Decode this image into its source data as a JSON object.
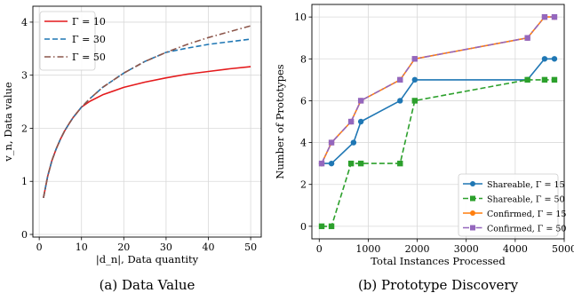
{
  "chart_data": [
    {
      "type": "line",
      "caption": "(a) Data Value",
      "xlabel": "|d_n|, Data quantity",
      "ylabel": "v_n, Data value",
      "xlim": [
        -1.5,
        52.5
      ],
      "ylim": [
        -0.05,
        4.3
      ],
      "xticks": [
        0,
        10,
        20,
        30,
        40,
        50
      ],
      "yticks": [
        0,
        1,
        2,
        3,
        4
      ],
      "grid": true,
      "legend_position": "top-left",
      "series": [
        {
          "name": "Γ = 10",
          "color": "#e41a1c",
          "dash": "solid",
          "x": [
            1,
            2,
            3,
            4,
            5,
            6,
            7,
            8,
            9,
            10,
            12,
            15,
            20,
            25,
            30,
            35,
            40,
            45,
            50
          ],
          "y": [
            0.69,
            1.1,
            1.39,
            1.61,
            1.79,
            1.95,
            2.08,
            2.2,
            2.3,
            2.4,
            2.51,
            2.63,
            2.77,
            2.87,
            2.95,
            3.02,
            3.07,
            3.12,
            3.16
          ]
        },
        {
          "name": "Γ = 30",
          "color": "#1f77b4",
          "dash": "dashed",
          "x": [
            1,
            2,
            3,
            4,
            5,
            6,
            7,
            8,
            9,
            10,
            12,
            15,
            20,
            25,
            30,
            35,
            40,
            45,
            50
          ],
          "y": [
            0.69,
            1.1,
            1.39,
            1.61,
            1.79,
            1.95,
            2.08,
            2.2,
            2.3,
            2.4,
            2.56,
            2.77,
            3.04,
            3.26,
            3.43,
            3.51,
            3.58,
            3.63,
            3.68
          ]
        },
        {
          "name": "Γ = 50",
          "color": "#8c564b",
          "dash": "dashdot",
          "x": [
            1,
            2,
            3,
            4,
            5,
            6,
            7,
            8,
            9,
            10,
            12,
            15,
            20,
            25,
            30,
            35,
            40,
            45,
            50
          ],
          "y": [
            0.69,
            1.1,
            1.39,
            1.61,
            1.79,
            1.95,
            2.08,
            2.2,
            2.3,
            2.4,
            2.56,
            2.77,
            3.04,
            3.26,
            3.43,
            3.58,
            3.71,
            3.82,
            3.93
          ]
        }
      ]
    },
    {
      "type": "line",
      "caption": "(b) Prototype Discovery",
      "xlabel": "Total Instances Processed",
      "ylabel": "Number of Prototypes",
      "xlim": [
        -150,
        5000
      ],
      "ylim": [
        -0.6,
        10.6
      ],
      "xticks": [
        0,
        1000,
        2000,
        3000,
        4000,
        5000
      ],
      "yticks": [
        0,
        2,
        4,
        6,
        8,
        10
      ],
      "grid": true,
      "legend_position": "bottom-right",
      "series": [
        {
          "name": "Shareable, Γ = 15",
          "color": "#1f77b4",
          "dash": "solid",
          "marker": "circle",
          "x": [
            50,
            250,
            700,
            850,
            1650,
            1950,
            4250,
            4600,
            4800
          ],
          "y": [
            3,
            3,
            4,
            5,
            6,
            7,
            7,
            8,
            8
          ]
        },
        {
          "name": "Shareable, Γ = 50",
          "color": "#2ca02c",
          "dash": "dashed",
          "marker": "square",
          "x": [
            50,
            250,
            650,
            850,
            1650,
            1950,
            4250,
            4600,
            4800
          ],
          "y": [
            0,
            0,
            3,
            3,
            3,
            6,
            7,
            7,
            7
          ]
        },
        {
          "name": "Confirmed, Γ = 15",
          "color": "#ff7f0e",
          "dash": "solid",
          "marker": "circle",
          "x": [
            50,
            250,
            650,
            850,
            1650,
            1950,
            4250,
            4600,
            4800
          ],
          "y": [
            3,
            4,
            5,
            6,
            7,
            8,
            9,
            10,
            10
          ]
        },
        {
          "name": "Confirmed, Γ = 50",
          "color": "#9467bd",
          "dash": "dashdot",
          "marker": "square",
          "x": [
            50,
            250,
            650,
            850,
            1650,
            1950,
            4250,
            4600,
            4800
          ],
          "y": [
            3,
            4,
            5,
            6,
            7,
            8,
            9,
            10,
            10
          ]
        }
      ]
    }
  ]
}
